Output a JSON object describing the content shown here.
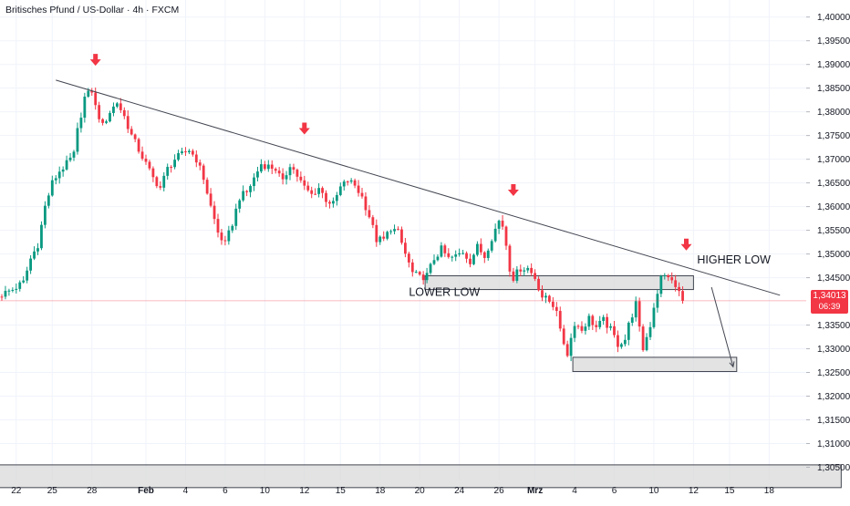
{
  "header": {
    "title": "Britisches Pfund / US-Dollar · 4h · FXCM"
  },
  "price_tag": {
    "price": "1,34013",
    "countdown": "06:39"
  },
  "colors": {
    "up": "#089981",
    "down": "#f23645",
    "trendline": "#434651",
    "box_fill": "#d9d9d9",
    "box_stroke": "#434651",
    "arrow": "#f23645",
    "price_line": "#f23645"
  },
  "chart_data": {
    "type": "candlestick",
    "title": "Britisches Pfund / US-Dollar · 4h · FXCM",
    "y_axis": {
      "ticks": [
        "1,40000",
        "1,39500",
        "1,39000",
        "1,38500",
        "1,38000",
        "1,37500",
        "1,37000",
        "1,36500",
        "1,36000",
        "1,35500",
        "1,35000",
        "1,34500",
        "1,33500",
        "1,33000",
        "1,32500",
        "1,32000",
        "1,31500",
        "1,31000",
        "1,30500"
      ],
      "tick_values": [
        1.4,
        1.395,
        1.39,
        1.385,
        1.38,
        1.375,
        1.37,
        1.365,
        1.36,
        1.355,
        1.35,
        1.345,
        1.335,
        1.33,
        1.325,
        1.32,
        1.315,
        1.31,
        1.305
      ],
      "range": [
        1.3024,
        1.4036
      ],
      "position": "right"
    },
    "x_axis": {
      "ticks": [
        {
          "label": "22",
          "i": 4,
          "bold": false
        },
        {
          "label": "25",
          "i": 14,
          "bold": false
        },
        {
          "label": "28",
          "i": 25,
          "bold": false
        },
        {
          "label": "Feb",
          "i": 40,
          "bold": true
        },
        {
          "label": "4",
          "i": 51,
          "bold": false
        },
        {
          "label": "6",
          "i": 62,
          "bold": false
        },
        {
          "label": "10",
          "i": 73,
          "bold": false
        },
        {
          "label": "12",
          "i": 84,
          "bold": false
        },
        {
          "label": "15",
          "i": 94,
          "bold": false
        },
        {
          "label": "18",
          "i": 105,
          "bold": false
        },
        {
          "label": "20",
          "i": 116,
          "bold": false
        },
        {
          "label": "24",
          "i": 127,
          "bold": false
        },
        {
          "label": "26",
          "i": 138,
          "bold": false
        },
        {
          "label": "Mrz",
          "i": 148,
          "bold": true
        },
        {
          "label": "4",
          "i": 159,
          "bold": false
        },
        {
          "label": "6",
          "i": 170,
          "bold": false
        },
        {
          "label": "10",
          "i": 181,
          "bold": false
        },
        {
          "label": "12",
          "i": 192,
          "bold": false
        },
        {
          "label": "15",
          "i": 202,
          "bold": false
        },
        {
          "label": "18",
          "i": 213,
          "bold": false
        }
      ]
    },
    "close_path": [
      [
        0,
        1.3415
      ],
      [
        3,
        1.3425
      ],
      [
        6,
        1.344
      ],
      [
        8,
        1.349
      ],
      [
        10,
        1.352
      ],
      [
        12,
        1.36
      ],
      [
        14,
        1.365
      ],
      [
        16,
        1.3675
      ],
      [
        18,
        1.369
      ],
      [
        20,
        1.371
      ],
      [
        21,
        1.376
      ],
      [
        23,
        1.383
      ],
      [
        25,
        1.3845
      ],
      [
        26,
        1.381
      ],
      [
        28,
        1.377
      ],
      [
        30,
        1.38
      ],
      [
        32,
        1.382
      ],
      [
        34,
        1.379
      ],
      [
        36,
        1.375
      ],
      [
        38,
        1.372
      ],
      [
        40,
        1.369
      ],
      [
        42,
        1.366
      ],
      [
        44,
        1.364
      ],
      [
        46,
        1.368
      ],
      [
        48,
        1.37
      ],
      [
        50,
        1.371
      ],
      [
        52,
        1.372
      ],
      [
        54,
        1.37
      ],
      [
        56,
        1.366
      ],
      [
        58,
        1.36
      ],
      [
        60,
        1.3545
      ],
      [
        62,
        1.352
      ],
      [
        64,
        1.3565
      ],
      [
        66,
        1.362
      ],
      [
        68,
        1.363
      ],
      [
        70,
        1.366
      ],
      [
        72,
        1.369
      ],
      [
        74,
        1.3685
      ],
      [
        76,
        1.368
      ],
      [
        78,
        1.365
      ],
      [
        80,
        1.369
      ],
      [
        82,
        1.3665
      ],
      [
        84,
        1.364
      ],
      [
        86,
        1.3625
      ],
      [
        88,
        1.364
      ],
      [
        90,
        1.3615
      ],
      [
        92,
        1.3605
      ],
      [
        94,
        1.364
      ],
      [
        96,
        1.3655
      ],
      [
        98,
        1.3645
      ],
      [
        100,
        1.362
      ],
      [
        102,
        1.358
      ],
      [
        104,
        1.353
      ],
      [
        106,
        1.353
      ],
      [
        108,
        1.3555
      ],
      [
        110,
        1.3545
      ],
      [
        112,
        1.35
      ],
      [
        114,
        1.346
      ],
      [
        116,
        1.345
      ],
      [
        118,
        1.3455
      ],
      [
        120,
        1.349
      ],
      [
        122,
        1.351
      ],
      [
        124,
        1.349
      ],
      [
        126,
        1.3495
      ],
      [
        128,
        1.3505
      ],
      [
        130,
        1.3485
      ],
      [
        132,
        1.3515
      ],
      [
        134,
        1.3495
      ],
      [
        136,
        1.3535
      ],
      [
        138,
        1.357
      ],
      [
        139,
        1.356
      ],
      [
        140,
        1.352
      ],
      [
        141,
        1.347
      ],
      [
        142,
        1.345
      ],
      [
        144,
        1.347
      ],
      [
        146,
        1.347
      ],
      [
        148,
        1.345
      ],
      [
        150,
        1.341
      ],
      [
        152,
        1.34
      ],
      [
        154,
        1.3385
      ],
      [
        155,
        1.3335
      ],
      [
        157,
        1.329
      ],
      [
        159,
        1.3355
      ],
      [
        161,
        1.334
      ],
      [
        163,
        1.3365
      ],
      [
        165,
        1.3345
      ],
      [
        167,
        1.336
      ],
      [
        169,
        1.334
      ],
      [
        171,
        1.331
      ],
      [
        173,
        1.332
      ],
      [
        174,
        1.335
      ],
      [
        176,
        1.3395
      ],
      [
        177,
        1.334
      ],
      [
        178,
        1.33
      ],
      [
        180,
        1.335
      ],
      [
        181,
        1.339
      ],
      [
        183,
        1.345
      ],
      [
        185,
        1.3455
      ],
      [
        186,
        1.344
      ],
      [
        188,
        1.342
      ],
      [
        189,
        1.3401
      ]
    ],
    "trendline": {
      "from": [
        15,
        1.3867
      ],
      "to": [
        216,
        1.3413
      ]
    },
    "zones": [
      {
        "i_from": 117.5,
        "i_to": 192,
        "top": 1.3454,
        "bottom": 1.3425
      },
      {
        "i_from": 158.5,
        "i_to": 204,
        "top": 1.3282,
        "bottom": 1.3252
      },
      {
        "i_from": -3,
        "i_to": 233,
        "top": 1.3055,
        "bottom": 1.3007
      }
    ],
    "projection": {
      "from": [
        197,
        1.343
      ],
      "to": [
        203,
        1.3262
      ]
    },
    "last_price": 1.34013,
    "markers": [
      {
        "i": 26,
        "price": 1.3905
      },
      {
        "i": 84,
        "price": 1.376
      },
      {
        "i": 142,
        "price": 1.363
      },
      {
        "i": 190,
        "price": 1.3515
      }
    ],
    "annotations": [
      {
        "text": "LOWER LOW",
        "i": 113,
        "price": 1.3412,
        "anchor": "start"
      },
      {
        "text": "HIGHER LOW",
        "i": 193,
        "price": 1.348,
        "anchor": "start"
      }
    ]
  }
}
